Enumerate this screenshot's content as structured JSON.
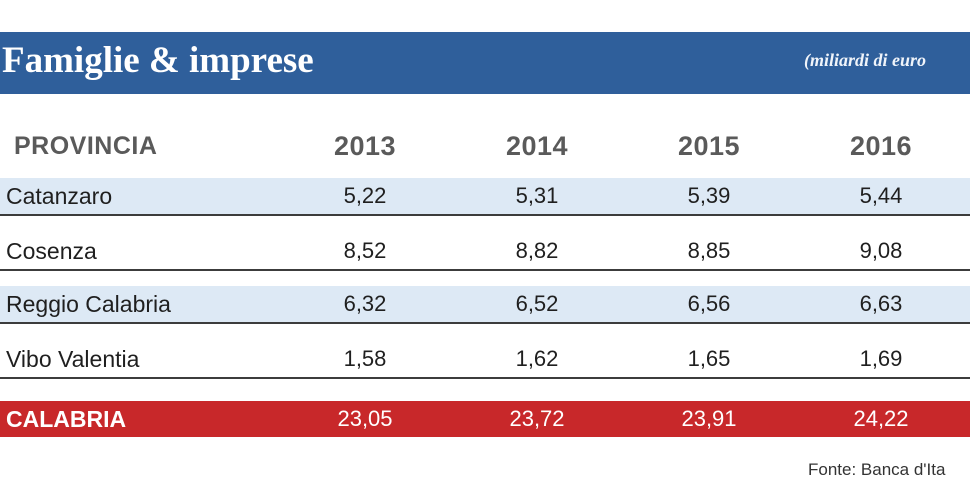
{
  "title": "Famiglie & imprese",
  "unit_note": "(miliardi di euro",
  "table": {
    "headers": [
      "PROVINCIA",
      "2013",
      "2014",
      "2015",
      "2016"
    ],
    "rows": [
      {
        "provincia": "Catanzaro",
        "values": [
          "5,22",
          "5,31",
          "5,39",
          "5,44"
        ]
      },
      {
        "provincia": "Cosenza",
        "values": [
          "8,52",
          "8,82",
          "8,85",
          "9,08"
        ]
      },
      {
        "provincia": "Reggio Calabria",
        "values": [
          "6,32",
          "6,52",
          "6,56",
          "6,63"
        ]
      },
      {
        "provincia": "Vibo Valentia",
        "values": [
          "1,58",
          "1,62",
          "1,65",
          "1,69"
        ]
      }
    ],
    "total": {
      "provincia": "CALABRIA",
      "values": [
        "23,05",
        "23,72",
        "23,91",
        "24,22"
      ]
    }
  },
  "source": "Fonte: Banca d'Ita",
  "colors": {
    "title_bar": "#2f5f9b",
    "row_shade": "#dde9f5",
    "total_row": "#c8282a"
  }
}
